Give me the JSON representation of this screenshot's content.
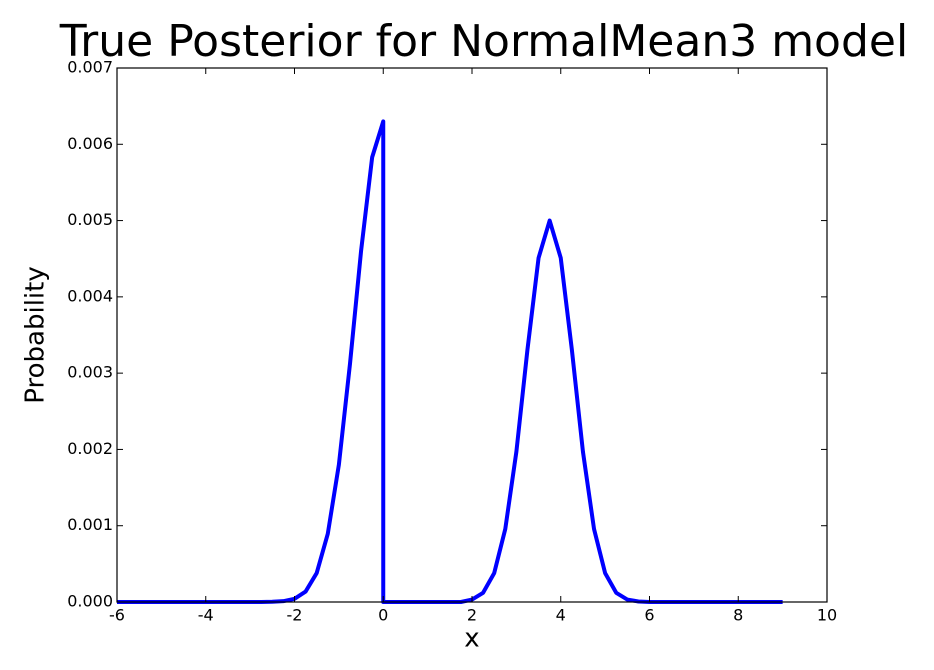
{
  "chart_data": {
    "type": "line",
    "title": "True Posterior for NormalMean3 model",
    "x_label": "x",
    "y_label": "Probability",
    "xlim": [
      -6,
      10
    ],
    "ylim": [
      0,
      0.007
    ],
    "xticks": [
      -6,
      -4,
      -2,
      0,
      2,
      4,
      6,
      8,
      10
    ],
    "yticks": [
      {
        "value": 0,
        "label": "0.000"
      },
      {
        "value": 0.001,
        "label": "0.001"
      },
      {
        "value": 0.002,
        "label": "0.002"
      },
      {
        "value": 0.003,
        "label": "0.003"
      },
      {
        "value": 0.004,
        "label": "0.004"
      },
      {
        "value": 0.005,
        "label": "0.005"
      },
      {
        "value": 0.006,
        "label": "0.006"
      },
      {
        "value": 0.007,
        "label": "0.007"
      }
    ],
    "x": [
      -6,
      -3,
      -2.75,
      -2.5,
      -2.25,
      -2,
      -1.75,
      -1.5,
      -1.25,
      -1,
      -0.75,
      -0.5,
      -0.25,
      0,
      0,
      0.25,
      1.75,
      2,
      2.25,
      2.5,
      2.75,
      3,
      3.25,
      3.5,
      3.75,
      4,
      4.25,
      4.5,
      4.75,
      5,
      5.25,
      5.5,
      5.75,
      6,
      9
    ],
    "series": [
      {
        "color": "#0000ff",
        "values": [
          0,
          0,
          0,
          3e-06,
          1.1e-05,
          4.2e-05,
          0.000137,
          0.000379,
          0.000894,
          0.0018,
          0.00312,
          0.0046,
          0.00583,
          0.0063,
          0,
          0,
          0,
          3.2e-05,
          0.000121,
          0.000379,
          0.000957,
          0.00197,
          0.00331,
          0.00451,
          0.005,
          0.00451,
          0.00331,
          0.00197,
          0.000957,
          0.000379,
          0.000121,
          3.2e-05,
          6.7e-06,
          0,
          0
        ]
      }
    ]
  }
}
